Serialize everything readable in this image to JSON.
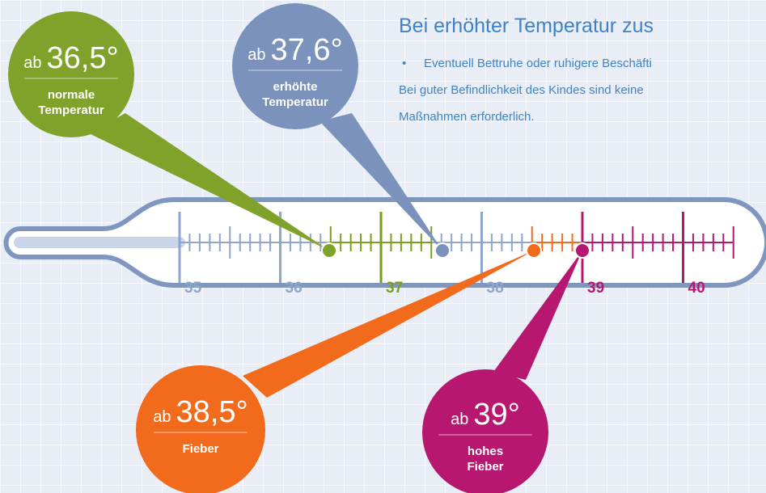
{
  "header": {
    "title": "Bei erhöhter Temperatur zus",
    "bullet": "•",
    "lines": [
      "Eventuell Bettruhe oder ruhigere Beschäfti",
      "Bei guter Befindlichkeit des Kindes sind keine",
      "Maßnahmen erforderlich."
    ]
  },
  "scale": {
    "labels": [
      35,
      36,
      37,
      38,
      39,
      40
    ]
  },
  "bubbles": [
    {
      "prefix": "ab",
      "value": "36,5°",
      "label": [
        "normale",
        "Temperatur"
      ]
    },
    {
      "prefix": "ab",
      "value": "37,6°",
      "label": [
        "erhöhte",
        "Temperatur"
      ]
    },
    {
      "prefix": "ab",
      "value": "38,5°",
      "label": [
        "Fieber"
      ]
    },
    {
      "prefix": "ab",
      "value": "39°",
      "label": [
        "hohes",
        "Fieber"
      ]
    }
  ]
}
